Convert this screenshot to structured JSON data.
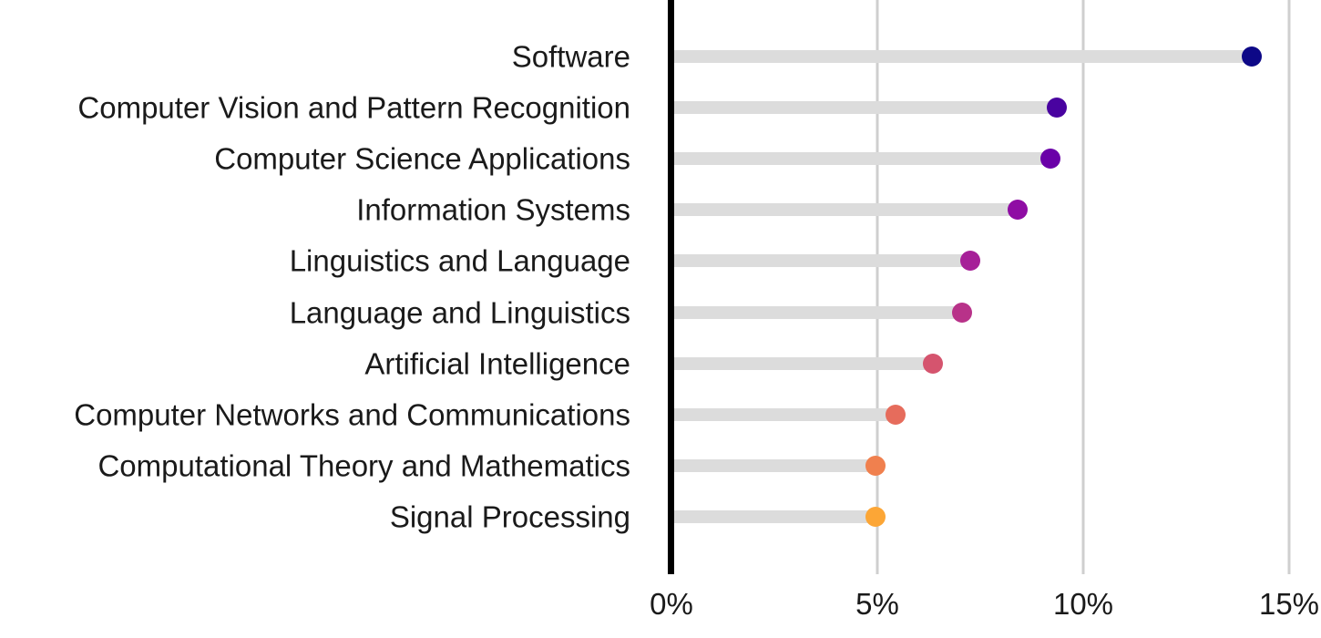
{
  "chart_data": {
    "type": "lollipop",
    "title": "",
    "xlabel": "",
    "ylabel": "",
    "xlim": [
      0,
      15.5
    ],
    "x_ticks": [
      0,
      5,
      10,
      15
    ],
    "x_tick_labels": [
      "0%",
      "5%",
      "10%",
      "15%"
    ],
    "grid": "vertical",
    "legend": "none",
    "categories": [
      "Software",
      "Computer Vision and Pattern Recognition",
      "Computer Science Applications",
      "Information Systems",
      "Linguistics and Language",
      "Language and Linguistics",
      "Artificial Intelligence",
      "Computer Networks and Communications",
      "Computational Theory and Mathematics",
      "Signal Processing"
    ],
    "values": [
      14.1,
      9.35,
      9.2,
      8.4,
      7.25,
      7.05,
      6.35,
      5.45,
      4.95,
      4.95
    ],
    "colors": [
      "#0d0887",
      "#4903a0",
      "#6a00a8",
      "#8f0da4",
      "#a62098",
      "#b83289",
      "#d5546e",
      "#e66c5c",
      "#f0804e",
      "#fca636"
    ],
    "unit": "%"
  }
}
